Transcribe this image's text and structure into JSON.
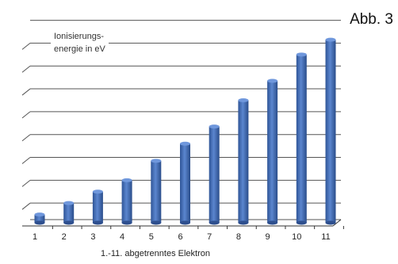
{
  "figure_label": "Abb. 3",
  "chart_data": {
    "type": "bar",
    "categories": [
      "1",
      "2",
      "3",
      "4",
      "5",
      "6",
      "7",
      "8",
      "9",
      "10",
      "11"
    ],
    "values": [
      0.5,
      1,
      1.5,
      2,
      2.85,
      3.6,
      4.35,
      5.5,
      6.35,
      7.5,
      8.15
    ],
    "ylabel_line1": "Ionisierungs-",
    "ylabel_line2": "energie in eV",
    "xlabel": "1.-11. abgetrenntes Elektron",
    "ylim": [
      0,
      8.5
    ],
    "grid": true,
    "bar_color": "#4472c4",
    "bar_color_dark": "#2e4f8e",
    "grid_color": "#555555"
  }
}
